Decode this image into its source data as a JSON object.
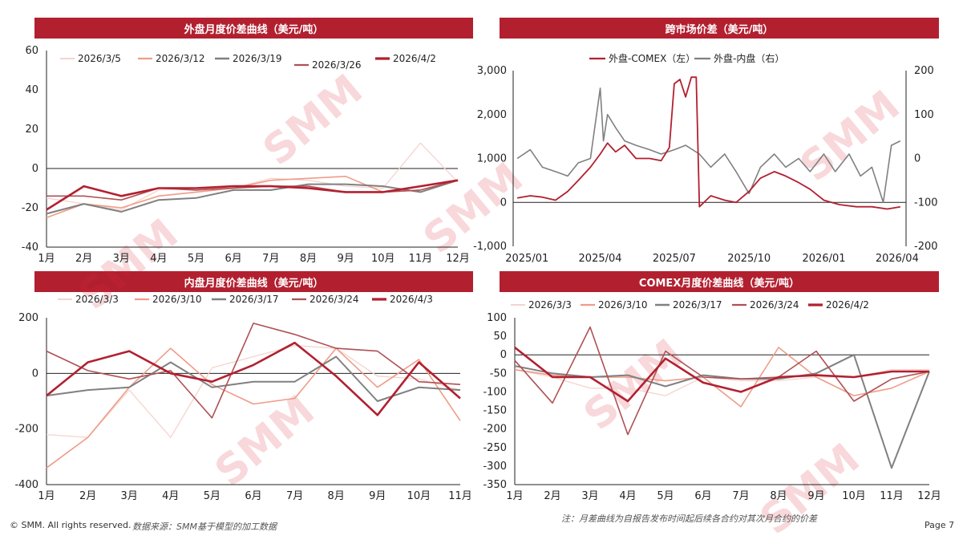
{
  "footer": {
    "copyright": "© SMM. All rights reserved.",
    "source": "数据来源：SMM基于模型的加工数据",
    "note": "注：月差曲线为自报告发布时间起后续各合约对其次月合约的价差",
    "page": "Page 7"
  },
  "watermark": "SMM",
  "colors": {
    "banner": "#b22030",
    "series": [
      "#f6d3ce",
      "#ef9c87",
      "#808080",
      "#b05055",
      "#b22030"
    ]
  },
  "chart_data": [
    {
      "type": "line",
      "title": "外盘月度价差曲线（美元/吨）",
      "categories": [
        "1月",
        "2月",
        "3月",
        "4月",
        "5月",
        "6月",
        "7月",
        "8月",
        "9月",
        "10月",
        "11月",
        "12月"
      ],
      "ylim": [
        -40,
        60
      ],
      "yticks": [
        -40,
        -20,
        0,
        20,
        40,
        60
      ],
      "series": [
        {
          "name": "2026/3/5",
          "values": [
            -15,
            -18,
            -21,
            -11,
            -10,
            -10,
            -5,
            -6,
            -9,
            -10,
            13,
            -7
          ]
        },
        {
          "name": "2026/3/12",
          "values": [
            -25,
            -18,
            -20,
            -14,
            -12,
            -10,
            -6,
            -5,
            -4,
            -12,
            -11,
            -6
          ]
        },
        {
          "name": "2026/3/19",
          "values": [
            -23,
            -18,
            -22,
            -16,
            -15,
            -11,
            -11,
            -8,
            -8,
            -9,
            -12,
            -6
          ]
        },
        {
          "name": "2026/3/26",
          "values": [
            -14,
            -14,
            -16,
            -10,
            -11,
            -10,
            -9,
            -9,
            -12,
            -12,
            -11,
            -6
          ]
        },
        {
          "name": "2026/4/2",
          "values": [
            -21,
            -9,
            -14,
            -10,
            -10,
            -9,
            -9,
            -10,
            -12,
            -12,
            -9,
            -6
          ]
        }
      ]
    },
    {
      "type": "line",
      "title": "跨市场价差（美元/吨）",
      "x_ticks": [
        "2025/01",
        "2025/04",
        "2025/07",
        "2025/10",
        "2026/01",
        "2026/04"
      ],
      "y_left": {
        "ticks": [
          "3,000",
          "2,000",
          "1,000",
          "0",
          "-1,000"
        ],
        "lim": [
          -1000,
          3000
        ]
      },
      "y_right": {
        "ticks": [
          "200",
          "100",
          "0",
          "-100",
          "-200"
        ],
        "lim": [
          -200,
          200
        ]
      },
      "series": [
        {
          "name": "外盘-COMEX（左）",
          "axis": "left",
          "x": [
            "2024-12-20",
            "2025-01-05",
            "2025-01-20",
            "2025-02-05",
            "2025-02-20",
            "2025-03-05",
            "2025-03-20",
            "2025-04-01",
            "2025-04-10",
            "2025-04-20",
            "2025-05-01",
            "2025-05-15",
            "2025-06-01",
            "2025-06-15",
            "2025-06-25",
            "2025-07-01",
            "2025-07-08",
            "2025-07-15",
            "2025-07-22",
            "2025-07-28",
            "2025-08-01",
            "2025-08-15",
            "2025-09-01",
            "2025-09-15",
            "2025-10-01",
            "2025-10-15",
            "2025-11-01",
            "2025-11-15",
            "2025-12-01",
            "2025-12-15",
            "2026-01-01",
            "2026-01-20",
            "2026-02-10",
            "2026-03-01",
            "2026-03-20",
            "2026-04-05"
          ],
          "values": [
            100,
            150,
            120,
            50,
            250,
            500,
            800,
            1100,
            1350,
            1150,
            1300,
            1000,
            1000,
            950,
            1250,
            2700,
            2800,
            2400,
            2850,
            2850,
            -100,
            150,
            50,
            0,
            250,
            550,
            700,
            600,
            450,
            300,
            50,
            -50,
            -100,
            -100,
            -150,
            -100
          ]
        },
        {
          "name": "外盘-内盘（右）",
          "axis": "right",
          "x": [
            "2024-12-20",
            "2025-01-05",
            "2025-01-20",
            "2025-02-05",
            "2025-02-20",
            "2025-03-05",
            "2025-03-20",
            "2025-04-01",
            "2025-04-05",
            "2025-04-10",
            "2025-04-20",
            "2025-05-01",
            "2025-05-15",
            "2025-06-01",
            "2025-06-15",
            "2025-07-01",
            "2025-07-15",
            "2025-08-01",
            "2025-08-15",
            "2025-09-01",
            "2025-09-15",
            "2025-10-01",
            "2025-10-15",
            "2025-11-01",
            "2025-11-15",
            "2025-12-01",
            "2025-12-15",
            "2026-01-01",
            "2026-01-15",
            "2026-02-01",
            "2026-02-15",
            "2026-03-01",
            "2026-03-15",
            "2026-03-25",
            "2026-04-05"
          ],
          "values": [
            0,
            20,
            -20,
            -30,
            -40,
            -10,
            0,
            160,
            40,
            100,
            70,
            40,
            30,
            20,
            10,
            20,
            30,
            10,
            -20,
            10,
            -30,
            -80,
            -20,
            10,
            -20,
            0,
            -30,
            10,
            -30,
            10,
            -40,
            -20,
            -100,
            30,
            40
          ]
        }
      ]
    },
    {
      "type": "line",
      "title": "内盘月度价差曲线（美元/吨）",
      "categories": [
        "1月",
        "2月",
        "3月",
        "4月",
        "5月",
        "6月",
        "7月",
        "8月",
        "9月",
        "10月",
        "11月"
      ],
      "ylim": [
        -400,
        200
      ],
      "yticks": [
        -400,
        -200,
        0,
        200
      ],
      "series": [
        {
          "name": "2026/3/3",
          "values": [
            -220,
            -230,
            -60,
            -230,
            20,
            60,
            100,
            90,
            -10,
            -20,
            -60
          ]
        },
        {
          "name": "2026/3/10",
          "values": [
            -340,
            -230,
            -50,
            90,
            -40,
            -110,
            -90,
            90,
            -50,
            50,
            -170
          ]
        },
        {
          "name": "2026/3/17",
          "values": [
            -80,
            -60,
            -50,
            40,
            -50,
            -30,
            -30,
            60,
            -100,
            -50,
            -60
          ]
        },
        {
          "name": "2026/3/24",
          "values": [
            80,
            10,
            -20,
            10,
            -160,
            180,
            140,
            90,
            80,
            -30,
            -40
          ]
        },
        {
          "name": "2026/4/3",
          "values": [
            -80,
            40,
            80,
            0,
            -30,
            30,
            110,
            -10,
            -150,
            40,
            -90
          ]
        }
      ]
    },
    {
      "type": "line",
      "title": "COMEX月度价差曲线（美元/吨）",
      "categories": [
        "1月",
        "2月",
        "3月",
        "4月",
        "5月",
        "6月",
        "7月",
        "8月",
        "9月",
        "10月",
        "11月",
        "12月"
      ],
      "ylim": [
        -350,
        100
      ],
      "yticks": [
        100,
        50,
        0,
        -50,
        -100,
        -150,
        -200,
        -250,
        -300,
        -350
      ],
      "series": [
        {
          "name": "2026/3/3",
          "values": [
            -40,
            -60,
            -90,
            -90,
            -110,
            -60,
            -70,
            -70,
            -60,
            -60,
            -40,
            -40
          ]
        },
        {
          "name": "2026/3/10",
          "values": [
            -40,
            -55,
            -60,
            -60,
            -70,
            -60,
            -140,
            20,
            -60,
            -110,
            -90,
            -45
          ]
        },
        {
          "name": "2026/3/17",
          "values": [
            -30,
            -50,
            -60,
            -55,
            -85,
            -55,
            -65,
            -65,
            -50,
            0,
            -305,
            -45
          ]
        },
        {
          "name": "2026/3/24",
          "values": [
            -15,
            -130,
            75,
            -215,
            10,
            -60,
            -65,
            -60,
            10,
            -125,
            -65,
            -45
          ]
        },
        {
          "name": "2026/4/2",
          "values": [
            20,
            -60,
            -60,
            -125,
            -10,
            -75,
            -100,
            -60,
            -55,
            -60,
            -45,
            -45
          ]
        }
      ]
    }
  ]
}
